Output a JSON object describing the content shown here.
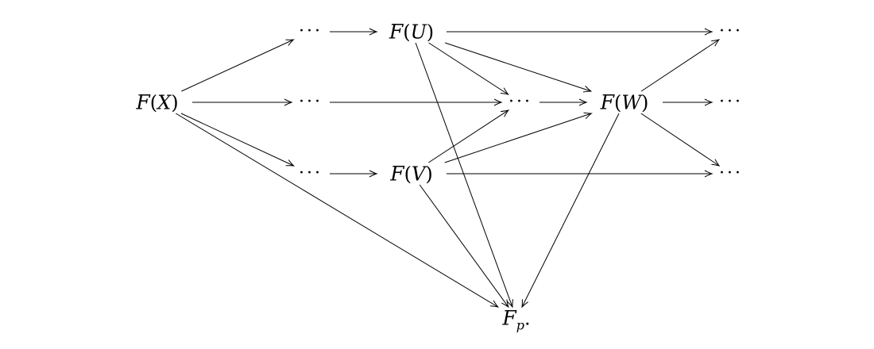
{
  "nodes": {
    "FX": {
      "script": "F",
      "open": "(",
      "var": "X",
      "close": ")"
    },
    "FU": {
      "script": "F",
      "open": "(",
      "var": "U",
      "close": ")"
    },
    "FV": {
      "script": "F",
      "open": "(",
      "var": "V",
      "close": ")"
    },
    "FW": {
      "script": "F",
      "open": "(",
      "var": "W",
      "close": ")"
    },
    "Fp": {
      "script": "F",
      "sub": "p",
      "suffix": "."
    },
    "d_top1": {
      "text": "···"
    },
    "d_mid1": {
      "text": "···"
    },
    "d_bot1": {
      "text": "···"
    },
    "d_center": {
      "text": "···"
    },
    "d_top_right": {
      "text": "···"
    },
    "d_mid_right": {
      "text": "···"
    },
    "d_bot_right": {
      "text": "···"
    }
  },
  "edges": [
    {
      "from": "FX",
      "to": "d_top1"
    },
    {
      "from": "FX",
      "to": "d_mid1"
    },
    {
      "from": "FX",
      "to": "d_bot1"
    },
    {
      "from": "FX",
      "to": "Fp"
    },
    {
      "from": "d_top1",
      "to": "FU"
    },
    {
      "from": "d_mid1",
      "to": "d_center"
    },
    {
      "from": "d_bot1",
      "to": "FV"
    },
    {
      "from": "FU",
      "to": "d_top_right"
    },
    {
      "from": "FU",
      "to": "d_center"
    },
    {
      "from": "FU",
      "to": "FW"
    },
    {
      "from": "FU",
      "to": "Fp"
    },
    {
      "from": "FV",
      "to": "d_center"
    },
    {
      "from": "FV",
      "to": "FW"
    },
    {
      "from": "FV",
      "to": "d_bot_right"
    },
    {
      "from": "FV",
      "to": "Fp"
    },
    {
      "from": "d_center",
      "to": "FW"
    },
    {
      "from": "FW",
      "to": "d_top_right"
    },
    {
      "from": "FW",
      "to": "d_mid_right"
    },
    {
      "from": "FW",
      "to": "d_bot_right"
    },
    {
      "from": "FW",
      "to": "Fp"
    }
  ]
}
